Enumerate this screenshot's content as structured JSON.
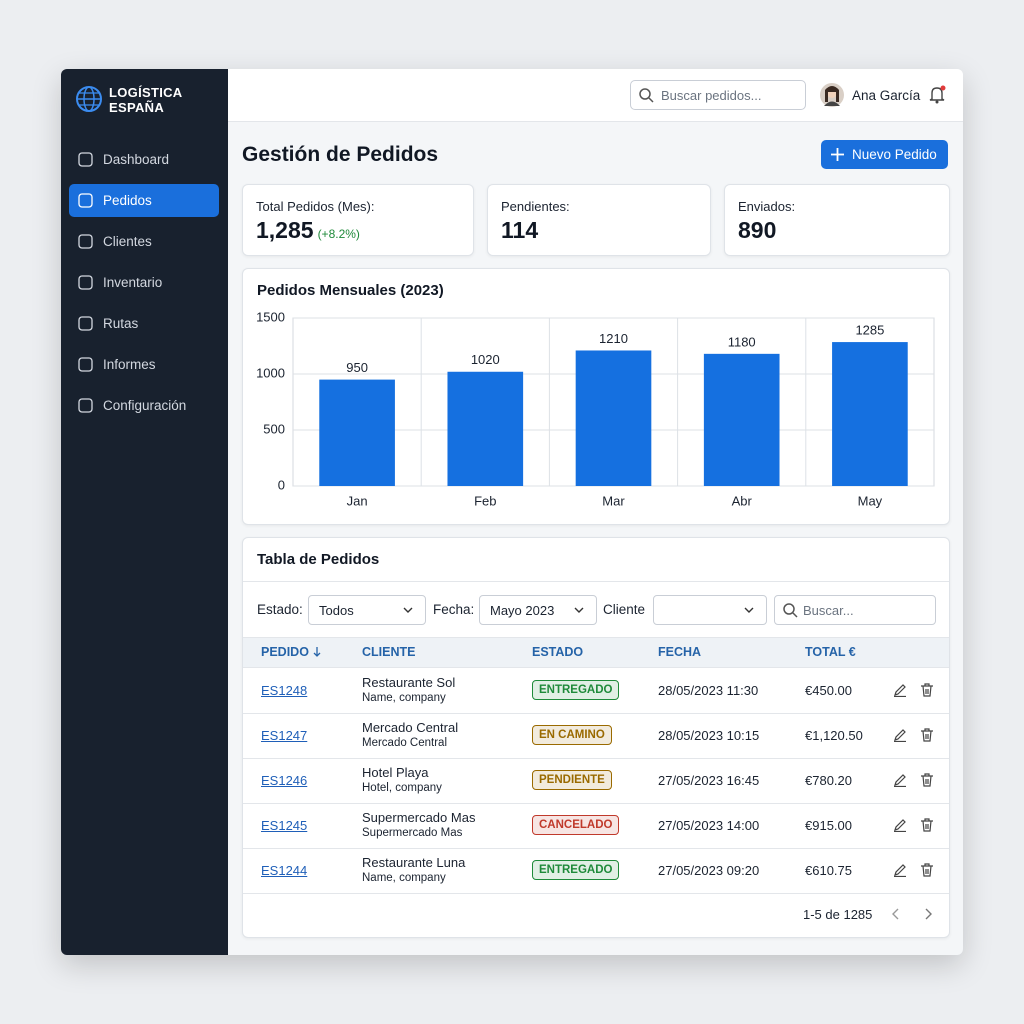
{
  "sidebar": {
    "brand": [
      "LOGÍSTICA",
      "ESPAÑA"
    ],
    "nav": [
      "Dashboard",
      "Pedidos",
      "Clientes",
      "Inventario",
      "Rutas",
      "Informes",
      "Configuración"
    ],
    "active": 1
  },
  "topbar": {
    "search_placeholder": "Buscar pedidos...",
    "user": "Ana García"
  },
  "header": {
    "title": "Gestión de Pedidos",
    "button": "Nuevo Pedido"
  },
  "stats": [
    {
      "label": "Total Pedidos (Mes):",
      "value": "1,285",
      "change": "(+8.2%)"
    },
    {
      "label": "Pendientes:",
      "value": "114"
    },
    {
      "label": "Enviados:",
      "value": "890"
    }
  ],
  "chart_data": {
    "type": "bar",
    "title": "Pedidos Mensuales (2023)",
    "categories": [
      "Jan",
      "Feb",
      "Mar",
      "Abr",
      "May"
    ],
    "values": [
      950,
      1020,
      1210,
      1180,
      1285
    ],
    "color": "#1570e0",
    "ylim": [
      0,
      1500
    ],
    "yticks": [
      0,
      500,
      1000,
      1500
    ],
    "grid": true
  },
  "table": {
    "title": "Tabla de Pedidos",
    "filters": {
      "estado_label": "Estado:",
      "estado_value": "Todos",
      "fecha_label": "Fecha:",
      "fecha_value": "Mayo 2023",
      "cliente_label": "Cliente",
      "search_placeholder": "Buscar..."
    },
    "columns": [
      "PEDIDO",
      "CLIENTE",
      "ESTADO",
      "FECHA",
      "TOTAL €"
    ],
    "rows": [
      {
        "id": "ES1248",
        "client": "Restaurante Sol",
        "client_sub": "Name, company",
        "status": "ENTREGADO",
        "status_color": "#1f8a3a",
        "date": "28/05/2023 11:30",
        "total": "€450.00"
      },
      {
        "id": "ES1247",
        "client": "Mercado Central",
        "client_sub": "Mercado Central",
        "status": "EN CAMINO",
        "status_color": "#9a6a00",
        "date": "28/05/2023 10:15",
        "total": "€1,120.50"
      },
      {
        "id": "ES1246",
        "client": "Hotel Playa",
        "client_sub": "Hotel, company",
        "status": "PENDIENTE",
        "status_color": "#9a6a00",
        "date": "27/05/2023 16:45",
        "total": "€780.20"
      },
      {
        "id": "ES1245",
        "client": "Supermercado Mas",
        "client_sub": "Supermercado Mas",
        "status": "CANCELADO",
        "status_color": "#c0392b",
        "date": "27/05/2023 14:00",
        "total": "€915.00"
      },
      {
        "id": "ES1244",
        "client": "Restaurante Luna",
        "client_sub": "Name, company",
        "status": "ENTREGADO",
        "status_color": "#1f8a3a",
        "date": "27/05/2023 09:20",
        "total": "€610.75"
      }
    ],
    "pagination": "1-5 de 1285"
  }
}
